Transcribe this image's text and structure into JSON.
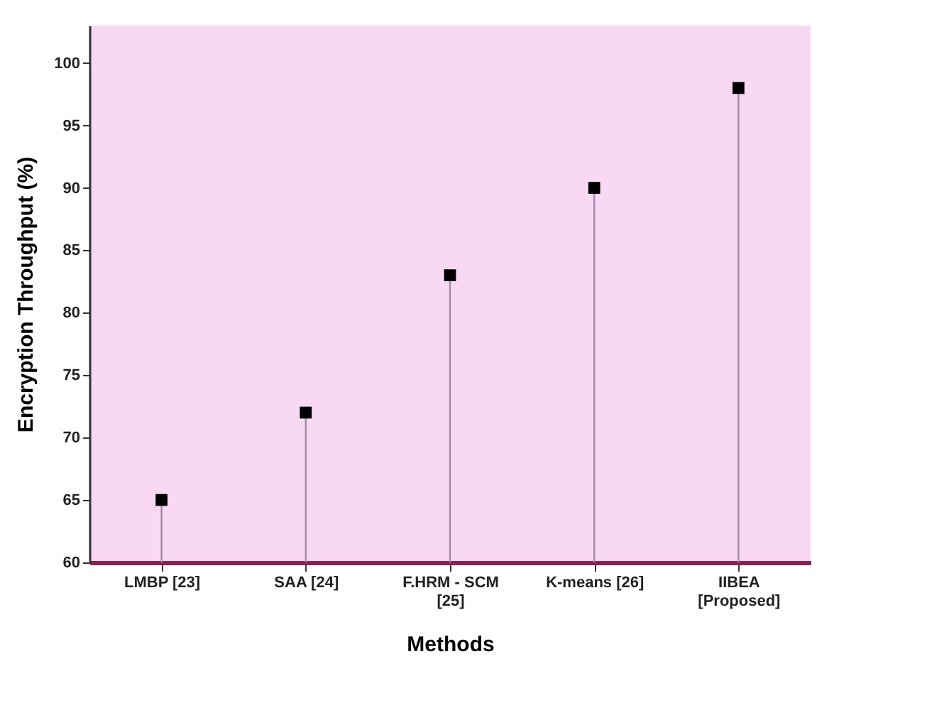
{
  "chart_data": {
    "type": "lollipop",
    "xlabel": "Methods",
    "ylabel": "Encryption Throughput (%)",
    "categories": [
      "LMBP [23]",
      "SAA [24]",
      "F.HRM - SCM\n[25]",
      "K-means [26]",
      "IIBEA\n[Proposed]"
    ],
    "series": [
      {
        "color": "#000000",
        "values": [
          65,
          72,
          83,
          90,
          98
        ]
      }
    ],
    "ylim": [
      60,
      103
    ],
    "yticks": [
      60,
      65,
      70,
      75,
      80,
      85,
      90,
      95,
      100
    ],
    "marker": "square"
  }
}
